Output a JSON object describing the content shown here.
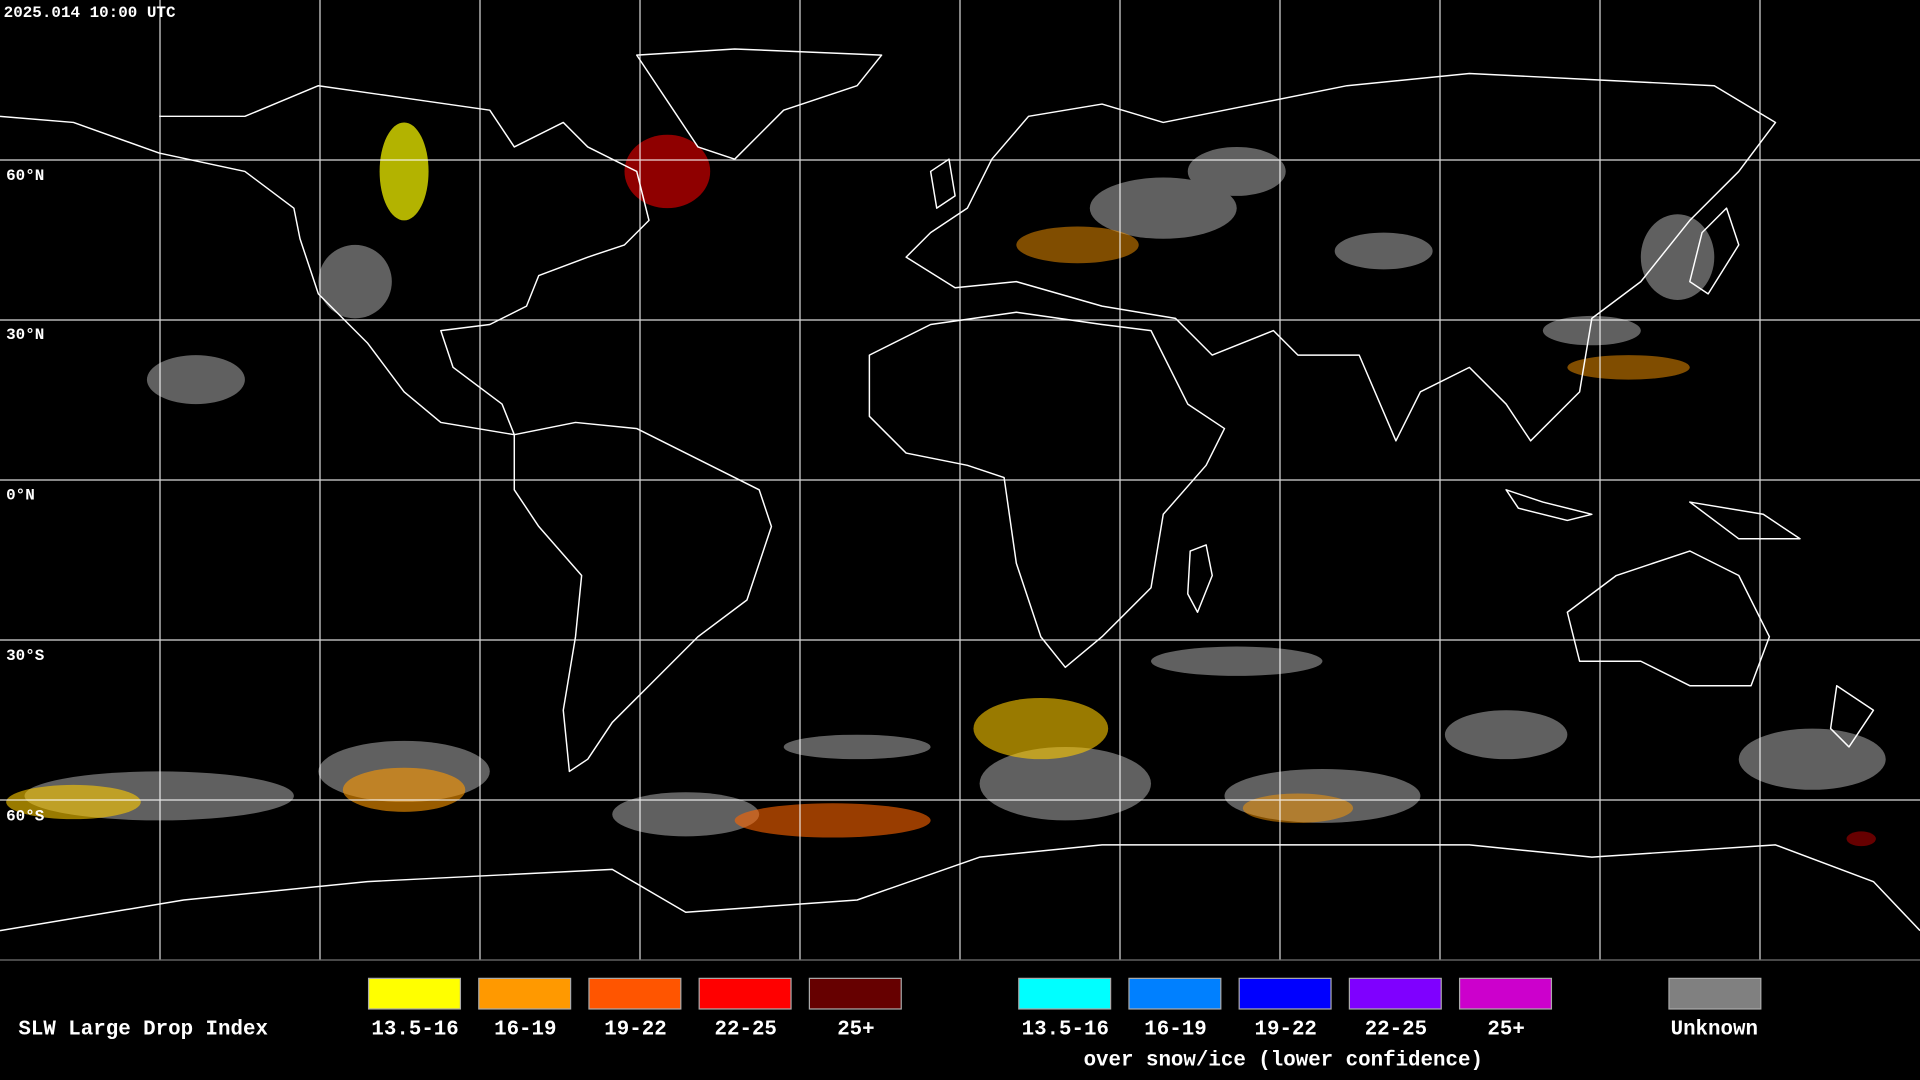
{
  "header": {
    "timestamp": "2025.014 10:00 UTC"
  },
  "map": {
    "latitude_labels": [
      "60°N",
      "30°N",
      "0°N",
      "30°S",
      "60°S"
    ]
  },
  "legend": {
    "title": "SLW Large Drop Index",
    "groups": [
      {
        "labels": [
          "13.5-16",
          "16-19",
          "19-22",
          "22-25",
          "25+"
        ],
        "colors": [
          "#ffff00",
          "#ff9900",
          "#ff5500",
          "#ff0000",
          "#660000"
        ]
      },
      {
        "labels": [
          "13.5-16",
          "16-19",
          "19-22",
          "22-25",
          "25+"
        ],
        "colors": [
          "#00ffff",
          "#0080ff",
          "#0000ff",
          "#7f00ff",
          "#cc00cc"
        ],
        "caption": "over snow/ice (lower confidence)"
      }
    ],
    "unknown": {
      "label": "Unknown",
      "color": "#808080"
    }
  }
}
